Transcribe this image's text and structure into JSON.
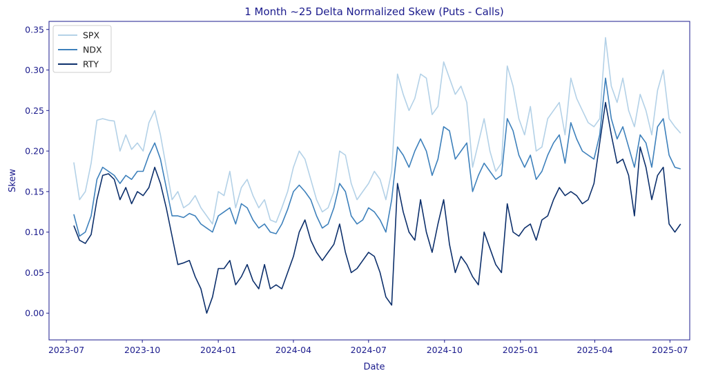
{
  "chart_data": {
    "type": "line",
    "title": "1 Month ~25 Delta Normalized Skew (Puts - Calls)",
    "xlabel": "Date",
    "ylabel": "Skew",
    "xlim": [
      "2023-06-10",
      "2025-07-25"
    ],
    "ylim": [
      -0.033,
      0.36
    ],
    "x_ticks": [
      "2023-07",
      "2023-10",
      "2024-01",
      "2024-04",
      "2024-07",
      "2024-10",
      "2025-01",
      "2025-04",
      "2025-07"
    ],
    "y_ticks": [
      0.0,
      0.05,
      0.1,
      0.15,
      0.2,
      0.25,
      0.3,
      0.35
    ],
    "y_tick_labels": [
      "0.00",
      "0.05",
      "0.10",
      "0.15",
      "0.20",
      "0.25",
      "0.30",
      "0.35"
    ],
    "grid": false,
    "legend": "upper-left",
    "x": [
      "2023-07-10",
      "2023-07-17",
      "2023-07-24",
      "2023-07-31",
      "2023-08-07",
      "2023-08-14",
      "2023-08-21",
      "2023-08-28",
      "2023-09-04",
      "2023-09-11",
      "2023-09-18",
      "2023-09-25",
      "2023-10-02",
      "2023-10-09",
      "2023-10-16",
      "2023-10-23",
      "2023-10-30",
      "2023-11-06",
      "2023-11-13",
      "2023-11-20",
      "2023-11-27",
      "2023-12-04",
      "2023-12-11",
      "2023-12-18",
      "2023-12-25",
      "2024-01-01",
      "2024-01-08",
      "2024-01-15",
      "2024-01-22",
      "2024-01-29",
      "2024-02-05",
      "2024-02-12",
      "2024-02-19",
      "2024-02-26",
      "2024-03-04",
      "2024-03-11",
      "2024-03-18",
      "2024-03-25",
      "2024-04-01",
      "2024-04-08",
      "2024-04-15",
      "2024-04-22",
      "2024-04-29",
      "2024-05-06",
      "2024-05-13",
      "2024-05-20",
      "2024-05-27",
      "2024-06-03",
      "2024-06-10",
      "2024-06-17",
      "2024-06-24",
      "2024-07-01",
      "2024-07-08",
      "2024-07-15",
      "2024-07-22",
      "2024-07-29",
      "2024-08-05",
      "2024-08-12",
      "2024-08-19",
      "2024-08-26",
      "2024-09-02",
      "2024-09-09",
      "2024-09-16",
      "2024-09-23",
      "2024-09-30",
      "2024-10-07",
      "2024-10-14",
      "2024-10-21",
      "2024-10-28",
      "2024-11-04",
      "2024-11-11",
      "2024-11-18",
      "2024-11-25",
      "2024-12-02",
      "2024-12-09",
      "2024-12-16",
      "2024-12-23",
      "2024-12-30",
      "2025-01-06",
      "2025-01-13",
      "2025-01-20",
      "2025-01-27",
      "2025-02-03",
      "2025-02-10",
      "2025-02-17",
      "2025-02-24",
      "2025-03-03",
      "2025-03-10",
      "2025-03-17",
      "2025-03-24",
      "2025-03-31",
      "2025-04-07",
      "2025-04-14",
      "2025-04-21",
      "2025-04-28",
      "2025-05-05",
      "2025-05-12",
      "2025-05-19",
      "2025-05-26",
      "2025-06-02",
      "2025-06-09",
      "2025-06-16",
      "2025-06-23",
      "2025-06-30",
      "2025-07-07",
      "2025-07-14"
    ],
    "series": [
      {
        "name": "SPX",
        "color": "#b3d1e7",
        "values": [
          0.186,
          0.14,
          0.15,
          0.185,
          0.238,
          0.24,
          0.238,
          0.237,
          0.2,
          0.22,
          0.202,
          0.21,
          0.2,
          0.235,
          0.25,
          0.22,
          0.18,
          0.14,
          0.15,
          0.13,
          0.135,
          0.145,
          0.13,
          0.12,
          0.11,
          0.15,
          0.145,
          0.175,
          0.13,
          0.155,
          0.165,
          0.145,
          0.13,
          0.14,
          0.115,
          0.112,
          0.13,
          0.15,
          0.18,
          0.2,
          0.19,
          0.165,
          0.14,
          0.125,
          0.13,
          0.15,
          0.2,
          0.195,
          0.16,
          0.14,
          0.15,
          0.16,
          0.175,
          0.165,
          0.14,
          0.175,
          0.295,
          0.27,
          0.25,
          0.265,
          0.295,
          0.29,
          0.245,
          0.255,
          0.31,
          0.29,
          0.27,
          0.28,
          0.26,
          0.18,
          0.21,
          0.24,
          0.2,
          0.175,
          0.185,
          0.305,
          0.28,
          0.24,
          0.22,
          0.255,
          0.2,
          0.205,
          0.24,
          0.25,
          0.26,
          0.22,
          0.29,
          0.265,
          0.25,
          0.235,
          0.23,
          0.24,
          0.34,
          0.28,
          0.26,
          0.29,
          0.25,
          0.23,
          0.27,
          0.25,
          0.22,
          0.275,
          0.3,
          0.24,
          0.23,
          0.222
        ]
      },
      {
        "name": "NDX",
        "color": "#3d80bb",
        "values": [
          0.122,
          0.095,
          0.1,
          0.12,
          0.165,
          0.18,
          0.175,
          0.17,
          0.16,
          0.17,
          0.165,
          0.175,
          0.175,
          0.195,
          0.21,
          0.19,
          0.155,
          0.12,
          0.12,
          0.118,
          0.123,
          0.12,
          0.11,
          0.105,
          0.1,
          0.12,
          0.125,
          0.13,
          0.11,
          0.135,
          0.13,
          0.115,
          0.105,
          0.11,
          0.1,
          0.098,
          0.11,
          0.128,
          0.15,
          0.158,
          0.15,
          0.14,
          0.12,
          0.105,
          0.11,
          0.13,
          0.16,
          0.15,
          0.12,
          0.11,
          0.115,
          0.13,
          0.125,
          0.115,
          0.1,
          0.14,
          0.205,
          0.195,
          0.18,
          0.2,
          0.215,
          0.2,
          0.17,
          0.19,
          0.23,
          0.225,
          0.19,
          0.2,
          0.21,
          0.15,
          0.17,
          0.185,
          0.175,
          0.165,
          0.17,
          0.24,
          0.225,
          0.195,
          0.18,
          0.195,
          0.165,
          0.175,
          0.195,
          0.21,
          0.22,
          0.185,
          0.235,
          0.215,
          0.2,
          0.195,
          0.19,
          0.22,
          0.29,
          0.24,
          0.215,
          0.23,
          0.205,
          0.18,
          0.22,
          0.21,
          0.18,
          0.23,
          0.24,
          0.195,
          0.18,
          0.178
        ]
      },
      {
        "name": "RTY",
        "color": "#0c2f6b",
        "values": [
          0.108,
          0.09,
          0.086,
          0.097,
          0.14,
          0.17,
          0.172,
          0.165,
          0.14,
          0.155,
          0.135,
          0.15,
          0.145,
          0.155,
          0.18,
          0.16,
          0.13,
          0.095,
          0.06,
          0.062,
          0.065,
          0.045,
          0.03,
          0.0,
          0.02,
          0.055,
          0.055,
          0.065,
          0.035,
          0.045,
          0.06,
          0.04,
          0.03,
          0.06,
          0.03,
          0.035,
          0.03,
          0.05,
          0.07,
          0.1,
          0.115,
          0.09,
          0.075,
          0.065,
          0.075,
          0.085,
          0.11,
          0.075,
          0.05,
          0.055,
          0.065,
          0.075,
          0.07,
          0.05,
          0.02,
          0.01,
          0.16,
          0.125,
          0.1,
          0.09,
          0.14,
          0.1,
          0.075,
          0.11,
          0.14,
          0.085,
          0.05,
          0.07,
          0.06,
          0.045,
          0.035,
          0.1,
          0.08,
          0.06,
          0.05,
          0.135,
          0.1,
          0.095,
          0.105,
          0.11,
          0.09,
          0.115,
          0.12,
          0.14,
          0.155,
          0.145,
          0.15,
          0.145,
          0.135,
          0.14,
          0.16,
          0.21,
          0.26,
          0.22,
          0.185,
          0.19,
          0.17,
          0.12,
          0.205,
          0.18,
          0.14,
          0.17,
          0.18,
          0.11,
          0.1,
          0.11
        ]
      }
    ]
  }
}
